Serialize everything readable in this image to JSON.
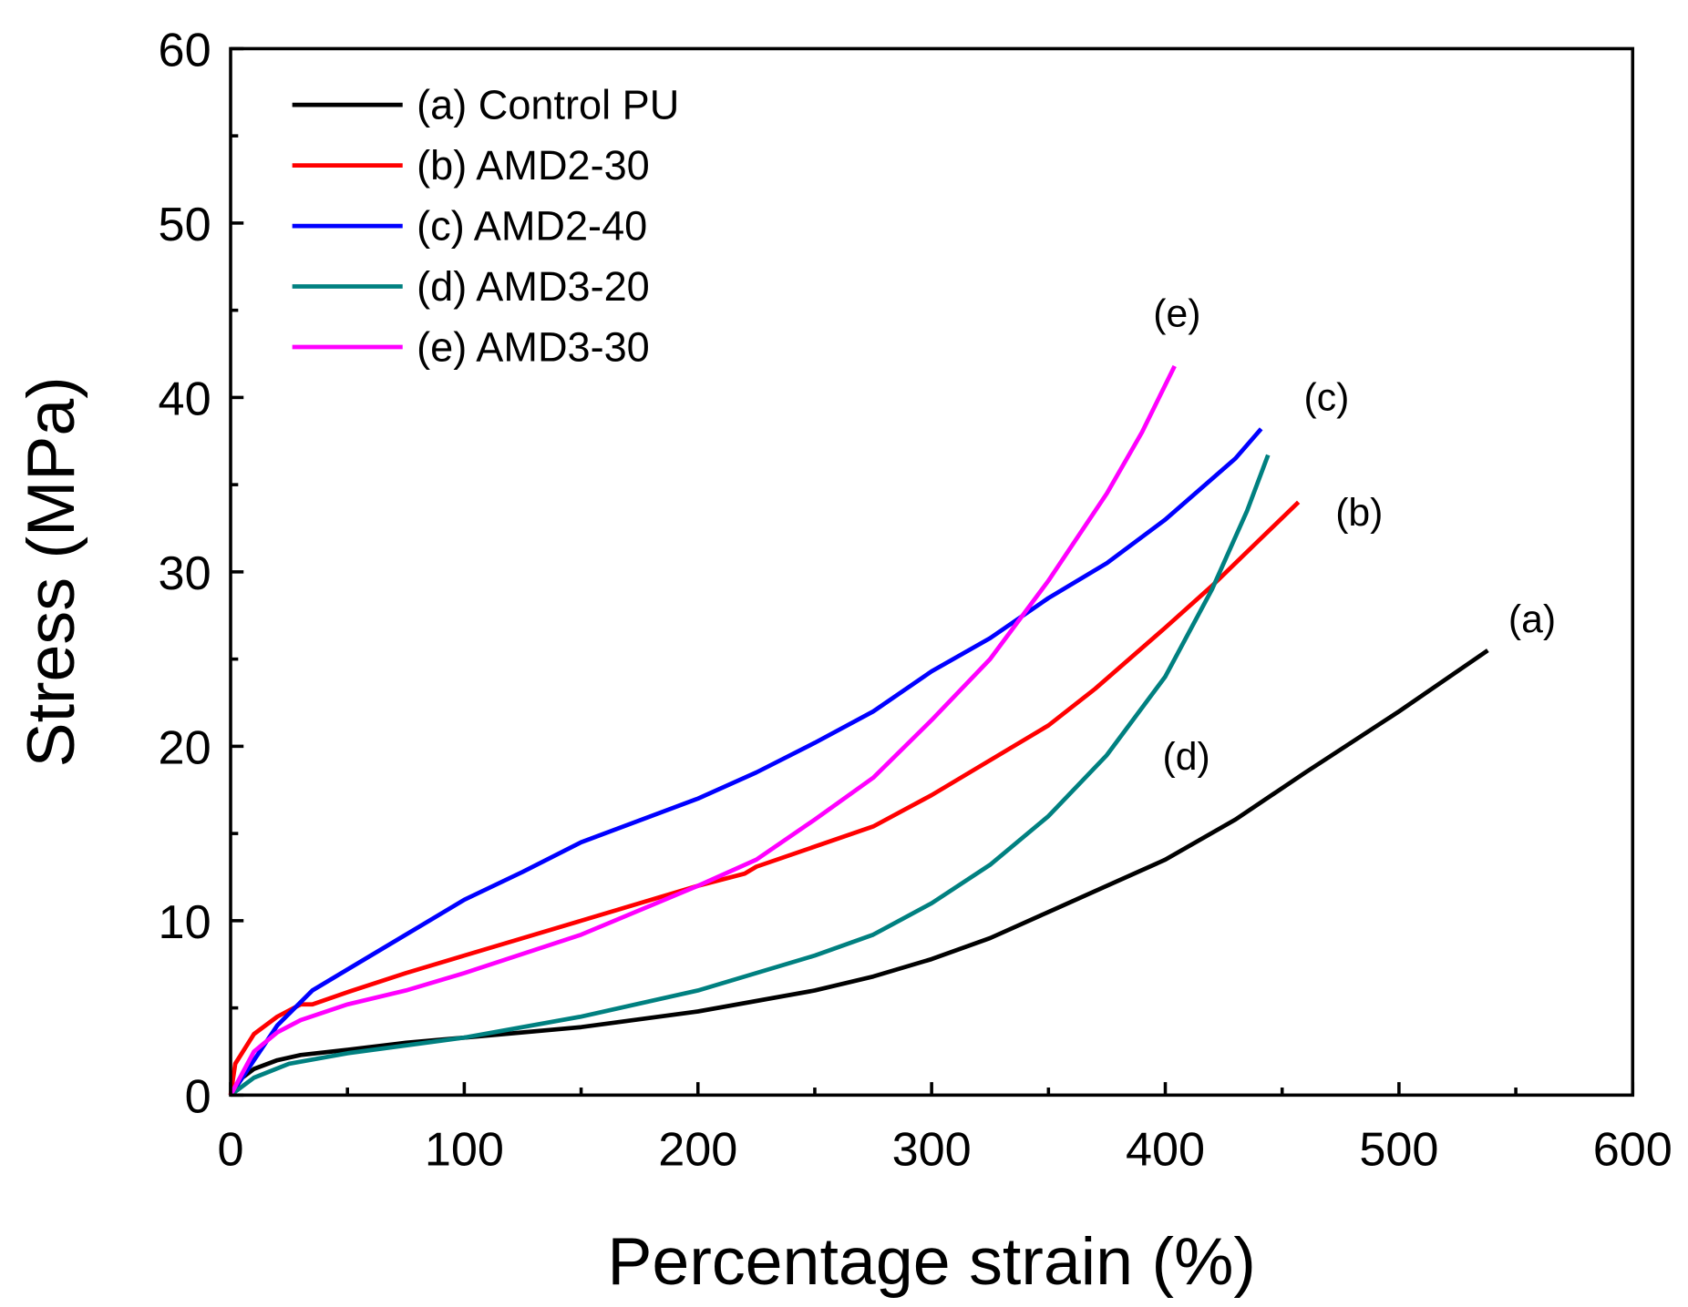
{
  "chart_data": {
    "type": "line",
    "title": "",
    "xlabel": "Percentage strain (%)",
    "ylabel": "Stress (MPa)",
    "xlim": [
      0,
      600
    ],
    "ylim": [
      0,
      60
    ],
    "xticks": [
      "0",
      "100",
      "200",
      "300",
      "400",
      "500",
      "600"
    ],
    "yticks": [
      "0",
      "10",
      "20",
      "30",
      "40",
      "50",
      "60"
    ],
    "grid": false,
    "legend_position": "top-left",
    "series": [
      {
        "name": "(a) Control PU",
        "color": "#000000",
        "x": [
          0,
          5,
          10,
          20,
          30,
          50,
          75,
          100,
          150,
          200,
          250,
          275,
          300,
          325,
          350,
          375,
          400,
          430,
          460,
          500,
          538
        ],
        "y": [
          0,
          1,
          1.5,
          2,
          2.3,
          2.6,
          3,
          3.3,
          3.9,
          4.8,
          6,
          6.8,
          7.8,
          9,
          10.5,
          12,
          13.5,
          15.8,
          18.5,
          22,
          25.5
        ]
      },
      {
        "name": "(b) AMD2-30",
        "color": "#ff0000",
        "x": [
          0,
          2,
          10,
          20,
          30,
          35,
          50,
          75,
          100,
          150,
          200,
          220,
          225,
          275,
          300,
          320,
          350,
          370,
          400,
          420,
          440,
          457
        ],
        "y": [
          0,
          1.8,
          3.5,
          4.5,
          5.2,
          5.2,
          5.9,
          7,
          8,
          10,
          12,
          12.7,
          13.1,
          15.4,
          17.2,
          18.8,
          21.2,
          23.3,
          26.8,
          29.2,
          31.8,
          34
        ]
      },
      {
        "name": "(c) AMD2-40",
        "color": "#0000ff",
        "x": [
          0,
          10,
          20,
          35,
          50,
          75,
          100,
          125,
          150,
          200,
          225,
          250,
          275,
          300,
          325,
          350,
          375,
          400,
          430,
          441
        ],
        "y": [
          0,
          2,
          4,
          6,
          7.2,
          9.2,
          11.2,
          12.8,
          14.5,
          17,
          18.5,
          20.2,
          22,
          24.3,
          26.2,
          28.5,
          30.5,
          33,
          36.5,
          38.2
        ]
      },
      {
        "name": "(d) AMD3-20",
        "color": "#008080",
        "x": [
          0,
          10,
          25,
          50,
          100,
          150,
          200,
          250,
          275,
          300,
          325,
          350,
          375,
          400,
          420,
          435,
          444
        ],
        "y": [
          0,
          1,
          1.8,
          2.4,
          3.3,
          4.5,
          6,
          8,
          9.2,
          11,
          13.2,
          16,
          19.5,
          24,
          29,
          33.5,
          36.7
        ]
      },
      {
        "name": "(e) AMD3-30",
        "color": "#ff00ff",
        "x": [
          0,
          10,
          20,
          30,
          50,
          75,
          100,
          150,
          200,
          225,
          250,
          275,
          300,
          325,
          350,
          375,
          390,
          404
        ],
        "y": [
          0,
          2.5,
          3.6,
          4.3,
          5.2,
          6,
          7,
          9.2,
          12,
          13.5,
          15.8,
          18.2,
          21.5,
          25,
          29.5,
          34.5,
          38,
          41.8
        ]
      }
    ],
    "annotations": [
      {
        "text": "(e)",
        "x": 405,
        "y": 44.8
      },
      {
        "text": "(c)",
        "x": 469,
        "y": 40
      },
      {
        "text": "(b)",
        "x": 483,
        "y": 33.4
      },
      {
        "text": "(a)",
        "x": 557,
        "y": 27.3
      },
      {
        "text": "(d)",
        "x": 409,
        "y": 19.4
      }
    ]
  }
}
